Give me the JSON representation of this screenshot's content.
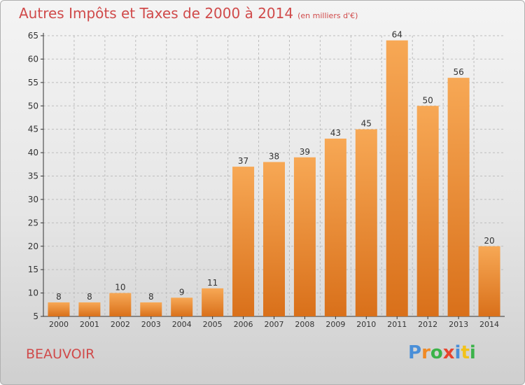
{
  "title": {
    "main": "Autres Impôts et Taxes de 2000 à 2014",
    "sub": "(en milliers d'€)"
  },
  "location": "BEAUVOIR",
  "logo": {
    "text": "Proxiti",
    "letters": [
      {
        "ch": "P",
        "color": "#4a8fd8"
      },
      {
        "ch": "r",
        "color": "#f08a24"
      },
      {
        "ch": "o",
        "color": "#3cb34a"
      },
      {
        "ch": "x",
        "color": "#e8442e"
      },
      {
        "ch": "i",
        "color": "#4a8fd8"
      },
      {
        "ch": "t",
        "color": "#f2c21a"
      },
      {
        "ch": "i",
        "color": "#3cb34a"
      }
    ]
  },
  "colors": {
    "title": "#d04a4a",
    "bar_light": "#f7a855",
    "bar_dark": "#d9701a",
    "axis": "#333333",
    "grid": "#bdbdbd"
  },
  "chart_data": {
    "type": "bar",
    "title": "Autres Impôts et Taxes de 2000 à 2014",
    "xlabel": "",
    "ylabel": "",
    "ylim": [
      5,
      65
    ],
    "yticks": [
      5,
      10,
      15,
      20,
      25,
      30,
      35,
      40,
      45,
      50,
      55,
      60,
      65
    ],
    "grid": true,
    "categories": [
      "2000",
      "2001",
      "2002",
      "2003",
      "2004",
      "2005",
      "2006",
      "2007",
      "2008",
      "2009",
      "2010",
      "2011",
      "2012",
      "2013",
      "2014"
    ],
    "values": [
      8,
      8,
      10,
      8,
      9,
      11,
      37,
      38,
      39,
      43,
      45,
      64,
      50,
      56,
      20
    ]
  }
}
